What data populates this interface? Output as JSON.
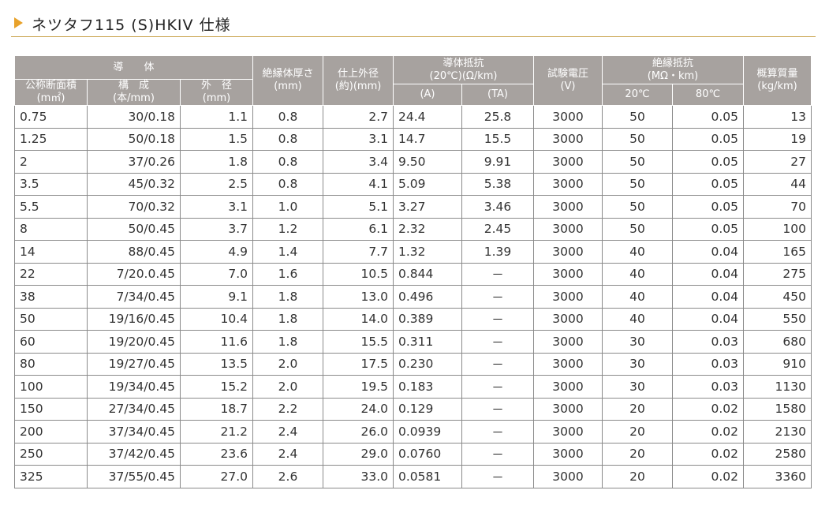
{
  "title": "ネツタフ115 (S)HKIV 仕様",
  "header": {
    "conductor": "導　　体",
    "area": "公称断面積",
    "area_unit": "(m㎡)",
    "construction": "構　成",
    "construction_unit": "(本/mm)",
    "diameter": "外　径",
    "diameter_unit": "(mm)",
    "insulation": "絶縁体厚さ",
    "insulation_unit": "(mm)",
    "finished": "仕上外径",
    "finished_unit": "(約)(mm)",
    "resistance": "導体抵抗",
    "resistance_unit": "(20℃)(Ω/km)",
    "res_a": "(A)",
    "res_ta": "(TA)",
    "voltage": "試験電圧",
    "voltage_unit": "(V)",
    "ins_res": "絶縁抵抗",
    "ins_res_unit": "(MΩ・km)",
    "t20": "20℃",
    "t80": "80℃",
    "mass": "概算質量",
    "mass_unit": "(kg/km)"
  },
  "rows": [
    {
      "area": "0.75",
      "construction": "30/0.18",
      "diameter": "1.1",
      "insulation": "0.8",
      "finished": "2.7",
      "res_a": "24.4",
      "res_ta": "25.8",
      "voltage": "3000",
      "r20": "50",
      "r80": "0.05",
      "mass": "13"
    },
    {
      "area": "1.25",
      "construction": "50/0.18",
      "diameter": "1.5",
      "insulation": "0.8",
      "finished": "3.1",
      "res_a": "14.7",
      "res_ta": "15.5",
      "voltage": "3000",
      "r20": "50",
      "r80": "0.05",
      "mass": "19"
    },
    {
      "area": "2",
      "construction": "37/0.26",
      "diameter": "1.8",
      "insulation": "0.8",
      "finished": "3.4",
      "res_a": "9.50",
      "res_ta": "9.91",
      "voltage": "3000",
      "r20": "50",
      "r80": "0.05",
      "mass": "27"
    },
    {
      "area": "3.5",
      "construction": "45/0.32",
      "diameter": "2.5",
      "insulation": "0.8",
      "finished": "4.1",
      "res_a": "5.09",
      "res_ta": "5.38",
      "voltage": "3000",
      "r20": "50",
      "r80": "0.05",
      "mass": "44"
    },
    {
      "area": "5.5",
      "construction": "70/0.32",
      "diameter": "3.1",
      "insulation": "1.0",
      "finished": "5.1",
      "res_a": "3.27",
      "res_ta": "3.46",
      "voltage": "3000",
      "r20": "50",
      "r80": "0.05",
      "mass": "70"
    },
    {
      "area": "8",
      "construction": "50/0.45",
      "diameter": "3.7",
      "insulation": "1.2",
      "finished": "6.1",
      "res_a": "2.32",
      "res_ta": "2.45",
      "voltage": "3000",
      "r20": "50",
      "r80": "0.05",
      "mass": "100"
    },
    {
      "area": "14",
      "construction": "88/0.45",
      "diameter": "4.9",
      "insulation": "1.4",
      "finished": "7.7",
      "res_a": "1.32",
      "res_ta": "1.39",
      "voltage": "3000",
      "r20": "40",
      "r80": "0.04",
      "mass": "165"
    },
    {
      "area": "22",
      "construction": "7/20.0.45",
      "diameter": "7.0",
      "insulation": "1.6",
      "finished": "10.5",
      "res_a": "0.844",
      "res_ta": "－",
      "voltage": "3000",
      "r20": "40",
      "r80": "0.04",
      "mass": "275"
    },
    {
      "area": "38",
      "construction": "7/34/0.45",
      "diameter": "9.1",
      "insulation": "1.8",
      "finished": "13.0",
      "res_a": "0.496",
      "res_ta": "－",
      "voltage": "3000",
      "r20": "40",
      "r80": "0.04",
      "mass": "450"
    },
    {
      "area": "50",
      "construction": "19/16/0.45",
      "diameter": "10.4",
      "insulation": "1.8",
      "finished": "14.0",
      "res_a": "0.389",
      "res_ta": "－",
      "voltage": "3000",
      "r20": "40",
      "r80": "0.04",
      "mass": "550"
    },
    {
      "area": "60",
      "construction": "19/20/0.45",
      "diameter": "11.6",
      "insulation": "1.8",
      "finished": "15.5",
      "res_a": "0.311",
      "res_ta": "－",
      "voltage": "3000",
      "r20": "30",
      "r80": "0.03",
      "mass": "680"
    },
    {
      "area": "80",
      "construction": "19/27/0.45",
      "diameter": "13.5",
      "insulation": "2.0",
      "finished": "17.5",
      "res_a": "0.230",
      "res_ta": "－",
      "voltage": "3000",
      "r20": "30",
      "r80": "0.03",
      "mass": "910"
    },
    {
      "area": "100",
      "construction": "19/34/0.45",
      "diameter": "15.2",
      "insulation": "2.0",
      "finished": "19.5",
      "res_a": "0.183",
      "res_ta": "－",
      "voltage": "3000",
      "r20": "30",
      "r80": "0.03",
      "mass": "1130"
    },
    {
      "area": "150",
      "construction": "27/34/0.45",
      "diameter": "18.7",
      "insulation": "2.2",
      "finished": "24.0",
      "res_a": "0.129",
      "res_ta": "－",
      "voltage": "3000",
      "r20": "20",
      "r80": "0.02",
      "mass": "1580"
    },
    {
      "area": "200",
      "construction": "37/34/0.45",
      "diameter": "21.2",
      "insulation": "2.4",
      "finished": "26.0",
      "res_a": "0.0939",
      "res_ta": "－",
      "voltage": "3000",
      "r20": "20",
      "r80": "0.02",
      "mass": "2130"
    },
    {
      "area": "250",
      "construction": "37/42/0.45",
      "diameter": "23.6",
      "insulation": "2.4",
      "finished": "29.0",
      "res_a": "0.0760",
      "res_ta": "－",
      "voltage": "3000",
      "r20": "20",
      "r80": "0.02",
      "mass": "2580"
    },
    {
      "area": "325",
      "construction": "37/55/0.45",
      "diameter": "27.0",
      "insulation": "2.6",
      "finished": "33.0",
      "res_a": "0.0581",
      "res_ta": "－",
      "voltage": "3000",
      "r20": "20",
      "r80": "0.02",
      "mass": "3360"
    }
  ]
}
